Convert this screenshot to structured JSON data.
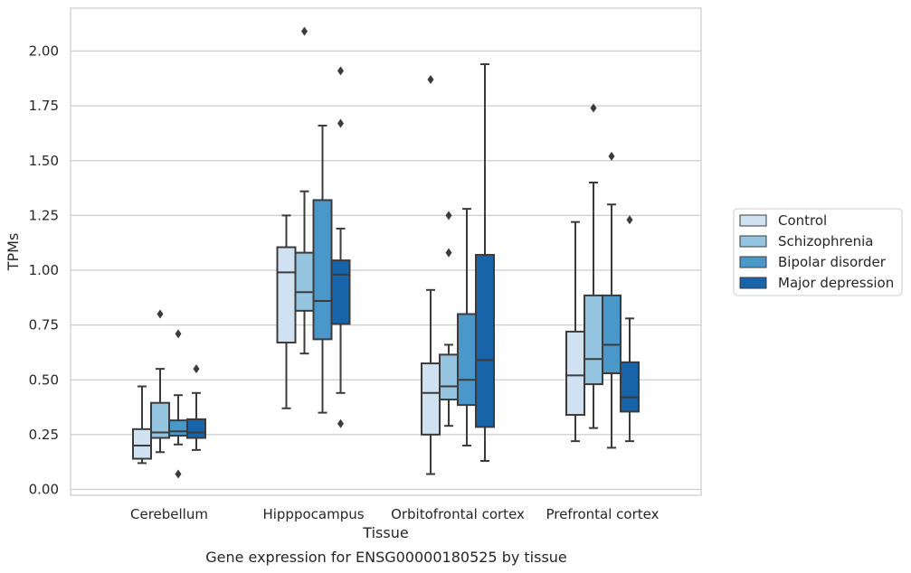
{
  "chart_data": {
    "type": "box",
    "title": "",
    "caption": "Gene expression for ENSG00000180525 by tissue",
    "xlabel": "Tissue",
    "ylabel": "TPMs",
    "ylim": [
      -0.03,
      2.2
    ],
    "y_ticks": [
      "0.00",
      "0.25",
      "0.50",
      "0.75",
      "1.00",
      "1.25",
      "1.50",
      "1.75",
      "2.00"
    ],
    "grid": "horizontal",
    "legend_position": "right",
    "categories": [
      "Cerebellum",
      "Hipppocampus",
      "Orbitofrontal cortex",
      "Prefrontal cortex"
    ],
    "series": [
      {
        "name": "Control",
        "color": "#d0e1f2",
        "boxes": [
          {
            "whisker_low": 0.12,
            "q1": 0.14,
            "median": 0.2,
            "q3": 0.275,
            "whisker_high": 0.47,
            "outliers": []
          },
          {
            "whisker_low": 0.37,
            "q1": 0.67,
            "median": 0.99,
            "q3": 1.105,
            "whisker_high": 1.25,
            "outliers": []
          },
          {
            "whisker_low": 0.07,
            "q1": 0.25,
            "median": 0.44,
            "q3": 0.575,
            "whisker_high": 0.91,
            "outliers": [
              1.87
            ]
          },
          {
            "whisker_low": 0.22,
            "q1": 0.34,
            "median": 0.52,
            "q3": 0.72,
            "whisker_high": 1.22,
            "outliers": []
          }
        ]
      },
      {
        "name": "Schizophrenia",
        "color": "#94c4df",
        "boxes": [
          {
            "whisker_low": 0.17,
            "q1": 0.235,
            "median": 0.26,
            "q3": 0.395,
            "whisker_high": 0.55,
            "outliers": [
              0.8
            ]
          },
          {
            "whisker_low": 0.62,
            "q1": 0.815,
            "median": 0.9,
            "q3": 1.08,
            "whisker_high": 1.36,
            "outliers": [
              2.09
            ]
          },
          {
            "whisker_low": 0.29,
            "q1": 0.41,
            "median": 0.47,
            "q3": 0.615,
            "whisker_high": 0.66,
            "outliers": [
              1.08,
              1.25
            ]
          },
          {
            "whisker_low": 0.28,
            "q1": 0.48,
            "median": 0.595,
            "q3": 0.885,
            "whisker_high": 1.4,
            "outliers": [
              1.74
            ]
          }
        ]
      },
      {
        "name": "Bipolar disorder",
        "color": "#4a98c9",
        "boxes": [
          {
            "whisker_low": 0.205,
            "q1": 0.245,
            "median": 0.265,
            "q3": 0.315,
            "whisker_high": 0.43,
            "outliers": [
              0.71,
              0.07
            ]
          },
          {
            "whisker_low": 0.35,
            "q1": 0.685,
            "median": 0.86,
            "q3": 1.32,
            "whisker_high": 1.66,
            "outliers": []
          },
          {
            "whisker_low": 0.2,
            "q1": 0.385,
            "median": 0.5,
            "q3": 0.8,
            "whisker_high": 1.28,
            "outliers": []
          },
          {
            "whisker_low": 0.19,
            "q1": 0.53,
            "median": 0.66,
            "q3": 0.885,
            "whisker_high": 1.3,
            "outliers": [
              1.52
            ]
          }
        ]
      },
      {
        "name": "Major depression",
        "color": "#1764ab",
        "boxes": [
          {
            "whisker_low": 0.18,
            "q1": 0.235,
            "median": 0.26,
            "q3": 0.32,
            "whisker_high": 0.44,
            "outliers": [
              0.55
            ]
          },
          {
            "whisker_low": 0.44,
            "q1": 0.755,
            "median": 0.98,
            "q3": 1.045,
            "whisker_high": 1.19,
            "outliers": [
              1.67,
              1.91,
              0.3
            ]
          },
          {
            "whisker_low": 0.13,
            "q1": 0.285,
            "median": 0.59,
            "q3": 1.07,
            "whisker_high": 1.94,
            "outliers": []
          },
          {
            "whisker_low": 0.22,
            "q1": 0.355,
            "median": 0.42,
            "q3": 0.58,
            "whisker_high": 0.78,
            "outliers": [
              1.23
            ]
          }
        ]
      }
    ]
  }
}
